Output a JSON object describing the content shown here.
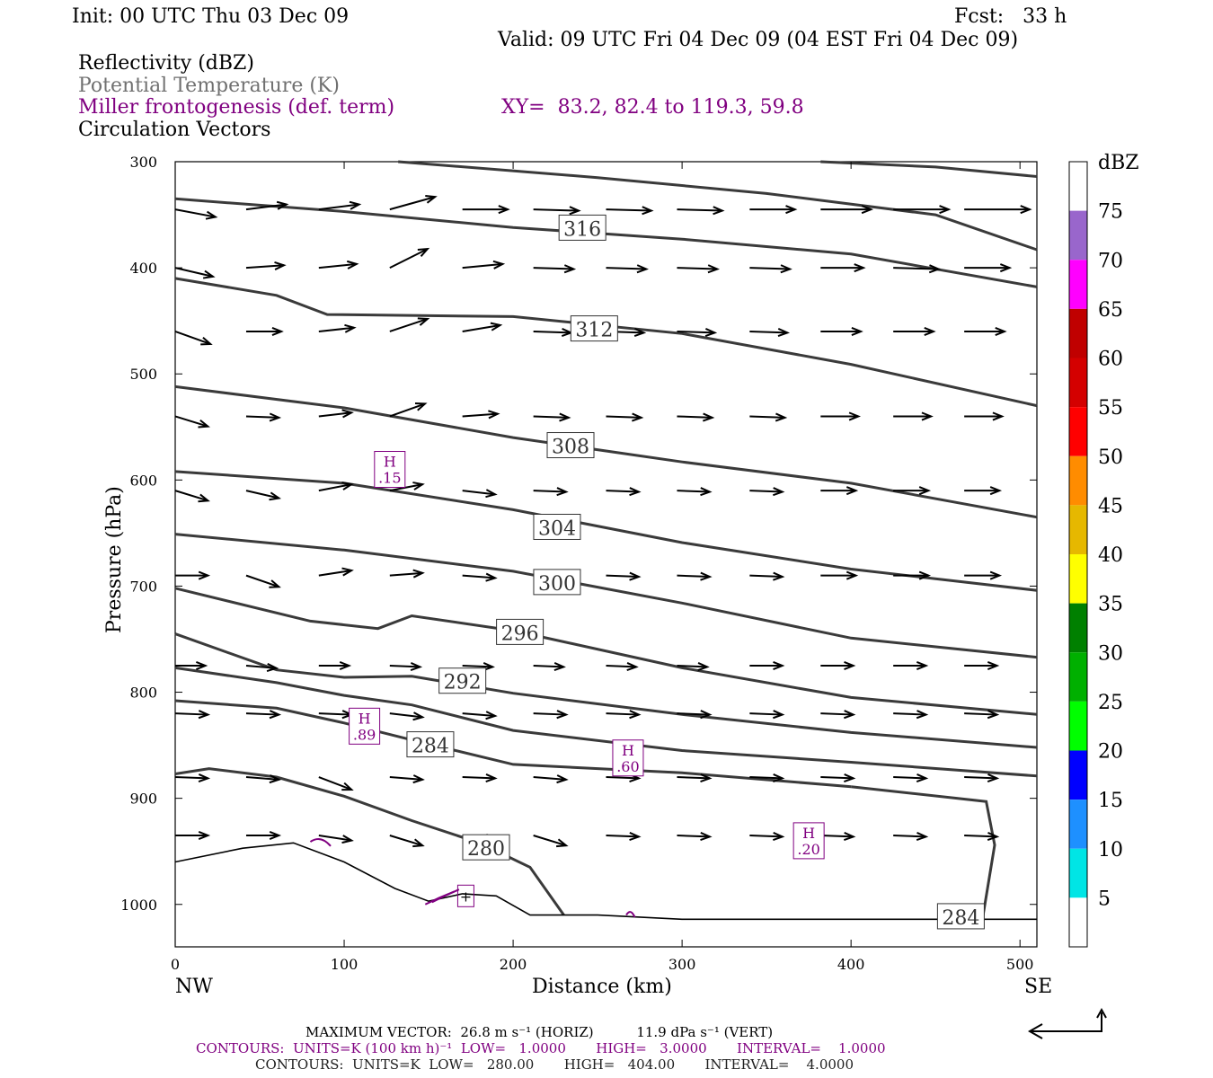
{
  "header": {
    "init": "Init: 00 UTC Thu 03 Dec 09",
    "fcst": "Fcst:   33 h",
    "valid": "Valid: 09 UTC Fri 04 Dec 09 (04 EST Fri 04 Dec 09)",
    "fields": [
      {
        "label": "Reflectivity (dBZ)",
        "color": "#000000"
      },
      {
        "label": "Potential Temperature (K)",
        "color": "#707070"
      },
      {
        "label": "Miller frontogenesis (def. term)",
        "color": "#800080"
      },
      {
        "label": "Circulation Vectors",
        "color": "#000000"
      }
    ],
    "xy": "XY=  83.2, 82.4 to 119.3, 59.8"
  },
  "chart_data": {
    "type": "cross-section",
    "xlabel": "Distance (km)",
    "ylabel": "Pressure (hPa)",
    "xlim": [
      0,
      510
    ],
    "ylim": [
      1040,
      300
    ],
    "x_ticks": [
      "0",
      "100",
      "200",
      "300",
      "400",
      "500"
    ],
    "y_ticks": [
      "300",
      "400",
      "500",
      "600",
      "700",
      "800",
      "900",
      "1000"
    ],
    "x_end_labels": {
      "left": "NW",
      "right": "SE"
    },
    "theta_contours": [
      {
        "label": "316",
        "label_at": [
          241,
          363
        ],
        "points": [
          [
            0,
            335
          ],
          [
            100,
            347
          ],
          [
            200,
            362
          ],
          [
            300,
            373
          ],
          [
            400,
            387
          ],
          [
            510,
            418
          ]
        ]
      },
      {
        "label": "",
        "points": [
          [
            132,
            300
          ],
          [
            250,
            315
          ],
          [
            350,
            330
          ],
          [
            450,
            350
          ],
          [
            510,
            383
          ]
        ]
      },
      {
        "label": "",
        "points": [
          [
            382,
            300
          ],
          [
            450,
            305
          ],
          [
            510,
            314
          ]
        ]
      },
      {
        "label": "312",
        "label_at": [
          248,
          458
        ],
        "points": [
          [
            0,
            410
          ],
          [
            60,
            426
          ],
          [
            90,
            444
          ],
          [
            200,
            446
          ],
          [
            300,
            462
          ],
          [
            400,
            491
          ],
          [
            510,
            530
          ]
        ]
      },
      {
        "label": "308",
        "label_at": [
          234,
          568
        ],
        "points": [
          [
            0,
            512
          ],
          [
            100,
            532
          ],
          [
            200,
            560
          ],
          [
            300,
            583
          ],
          [
            400,
            603
          ],
          [
            510,
            635
          ]
        ]
      },
      {
        "label": "304",
        "label_at": [
          226,
          645
        ],
        "points": [
          [
            0,
            592
          ],
          [
            100,
            603
          ],
          [
            200,
            628
          ],
          [
            300,
            659
          ],
          [
            400,
            684
          ],
          [
            510,
            704
          ]
        ]
      },
      {
        "label": "300",
        "label_at": [
          226,
          697
        ],
        "points": [
          [
            0,
            651
          ],
          [
            100,
            666
          ],
          [
            200,
            686
          ],
          [
            300,
            716
          ],
          [
            400,
            749
          ],
          [
            510,
            767
          ]
        ]
      },
      {
        "label": "296",
        "label_at": [
          204,
          744
        ],
        "points": [
          [
            0,
            702
          ],
          [
            80,
            733
          ],
          [
            120,
            740
          ],
          [
            140,
            728
          ],
          [
            200,
            742
          ],
          [
            300,
            777
          ],
          [
            400,
            805
          ],
          [
            510,
            821
          ]
        ]
      },
      {
        "label": "292",
        "label_at": [
          170,
          790
        ],
        "points": [
          [
            0,
            745
          ],
          [
            60,
            779
          ],
          [
            100,
            786
          ],
          [
            140,
            785
          ],
          [
            200,
            801
          ],
          [
            300,
            821
          ],
          [
            400,
            838
          ],
          [
            510,
            852
          ]
        ]
      },
      {
        "label": "",
        "points": [
          [
            0,
            777
          ],
          [
            60,
            791
          ],
          [
            100,
            803
          ],
          [
            140,
            812
          ],
          [
            200,
            836
          ],
          [
            300,
            855
          ],
          [
            400,
            866
          ],
          [
            510,
            879
          ]
        ]
      },
      {
        "label": "284",
        "label_at": [
          151,
          850
        ],
        "points": [
          [
            0,
            808
          ],
          [
            60,
            815
          ],
          [
            100,
            829
          ],
          [
            140,
            845
          ],
          [
            200,
            868
          ],
          [
            300,
            876
          ],
          [
            400,
            889
          ]
        ]
      },
      {
        "label": "280",
        "label_at": [
          184,
          947
        ],
        "points": [
          [
            0,
            877
          ],
          [
            20,
            872
          ],
          [
            60,
            880
          ],
          [
            100,
            898
          ],
          [
            140,
            921
          ],
          [
            180,
            942
          ],
          [
            210,
            965
          ],
          [
            230,
            1010
          ]
        ]
      }
    ],
    "closed_contour_284_right": {
      "label": "284",
      "label_at": [
        465,
        1012
      ],
      "points": [
        [
          400,
          889
        ],
        [
          480,
          903
        ],
        [
          485,
          944
        ],
        [
          478,
          1012
        ]
      ]
    },
    "terrain": [
      [
        0,
        960
      ],
      [
        40,
        947
      ],
      [
        70,
        942
      ],
      [
        100,
        960
      ],
      [
        130,
        985
      ],
      [
        150,
        997
      ],
      [
        170,
        990
      ],
      [
        190,
        992
      ],
      [
        210,
        1010
      ],
      [
        250,
        1010
      ],
      [
        300,
        1014
      ],
      [
        400,
        1014
      ],
      [
        510,
        1014
      ]
    ],
    "vectors": {
      "x": [
        0,
        42,
        85,
        127,
        170,
        212,
        255,
        297,
        340,
        382,
        425,
        467
      ],
      "rows": [
        {
          "p": 345,
          "u": [
            3.2,
            3.2,
            3.2,
            3.6,
            3.6,
            3.6,
            3.6,
            3.6,
            3.6,
            4.0,
            4.4,
            5.2
          ],
          "w": [
            0.6,
            -0.4,
            -0.4,
            -1.0,
            0,
            0.1,
            0.1,
            0.1,
            0,
            0,
            0,
            0
          ]
        },
        {
          "p": 400,
          "u": [
            3.0,
            3.0,
            3.0,
            3.0,
            3.2,
            3.2,
            3.2,
            3.2,
            3.2,
            3.4,
            3.6,
            3.6
          ],
          "w": [
            0.7,
            -0.2,
            -0.3,
            -1.5,
            -0.3,
            0.1,
            0.1,
            0.1,
            0.1,
            0,
            0.1,
            0
          ]
        },
        {
          "p": 460,
          "u": [
            2.8,
            2.8,
            2.8,
            3.0,
            3.0,
            3.0,
            3.0,
            3.0,
            3.0,
            3.2,
            3.2,
            3.2
          ],
          "w": [
            1.0,
            0,
            -0.3,
            -1.0,
            -0.5,
            0.1,
            0.1,
            0.1,
            0.1,
            0,
            0,
            0
          ]
        },
        {
          "p": 540,
          "u": [
            2.6,
            2.6,
            2.6,
            2.8,
            2.8,
            2.8,
            2.8,
            2.8,
            2.8,
            3.0,
            3.0,
            3.0
          ],
          "w": [
            0.8,
            0.1,
            -0.3,
            -1.0,
            -0.2,
            0.1,
            0.1,
            0.1,
            0.1,
            0,
            0,
            0
          ]
        },
        {
          "p": 610,
          "u": [
            2.6,
            2.6,
            2.6,
            2.6,
            2.6,
            2.6,
            2.6,
            2.6,
            2.6,
            2.8,
            2.8,
            2.8
          ],
          "w": [
            0.8,
            0.6,
            -0.5,
            -0.5,
            0.3,
            0.1,
            0.1,
            0.1,
            0.1,
            0,
            0,
            0
          ]
        },
        {
          "p": 690,
          "u": [
            2.6,
            2.6,
            2.6,
            2.6,
            2.6,
            2.6,
            2.6,
            2.6,
            2.6,
            2.8,
            2.8,
            2.8
          ],
          "w": [
            0,
            0.9,
            -0.4,
            -0.2,
            0.2,
            0.1,
            0.1,
            0.1,
            0.1,
            0,
            0,
            0
          ]
        },
        {
          "p": 775,
          "u": [
            2.4,
            2.4,
            2.4,
            2.4,
            2.4,
            2.4,
            2.4,
            2.4,
            2.6,
            2.6,
            2.6,
            2.6
          ],
          "w": [
            0,
            0.2,
            0,
            0.1,
            0.1,
            0.1,
            0.1,
            0.1,
            0,
            0,
            0,
            0
          ]
        },
        {
          "p": 820,
          "u": [
            2.6,
            2.6,
            2.6,
            2.6,
            2.6,
            2.6,
            2.6,
            2.6,
            2.6,
            2.6,
            2.6,
            2.6
          ],
          "w": [
            0.1,
            0.1,
            0.1,
            0.3,
            0.2,
            0.1,
            0.1,
            0.1,
            0.1,
            0.1,
            0.1,
            0.1
          ]
        },
        {
          "p": 880,
          "u": [
            2.6,
            2.6,
            2.6,
            2.6,
            2.6,
            2.6,
            2.6,
            2.6,
            2.6,
            2.6,
            2.6,
            2.6
          ],
          "w": [
            0.1,
            0.2,
            1.0,
            0.2,
            0.1,
            0.2,
            0.1,
            0.1,
            0.1,
            0.1,
            0.1,
            0.1
          ]
        },
        {
          "p": 935,
          "u": [
            2.6,
            2.6,
            2.6,
            2.6,
            2.6,
            2.6,
            2.6,
            2.6,
            2.6,
            2.6,
            2.6,
            2.6
          ],
          "w": [
            0,
            0,
            0.4,
            0.8,
            0.3,
            0.8,
            0.1,
            0.1,
            0.1,
            0.1,
            0.1,
            0.1
          ]
        }
      ]
    },
    "frontogenesis_maxima": [
      {
        "letter": "H",
        "value": ".15",
        "at": [
          127,
          590
        ]
      },
      {
        "letter": "H",
        "value": ".89",
        "at": [
          112,
          832
        ]
      },
      {
        "letter": "H",
        "value": ".60",
        "at": [
          268,
          862
        ]
      },
      {
        "letter": "H",
        "value": ".20",
        "at": [
          375,
          940
        ]
      },
      {
        "letter": "+",
        "value": "",
        "at": [
          172,
          992
        ]
      }
    ],
    "colorbar": {
      "title": "dBZ",
      "levels": [
        "75",
        "70",
        "65",
        "60",
        "55",
        "50",
        "45",
        "40",
        "35",
        "30",
        "25",
        "20",
        "15",
        "10",
        "5"
      ],
      "colors": [
        "#ffffff",
        "#9966cc",
        "#ff00ff",
        "#c00000",
        "#d40000",
        "#ff0000",
        "#ff8c00",
        "#e6b800",
        "#ffff00",
        "#008000",
        "#00b000",
        "#00ff00",
        "#0000ff",
        "#1e90ff",
        "#00e5e5",
        "#ffffff"
      ]
    }
  },
  "footer": {
    "max_vector": "MAXIMUM VECTOR:  26.8 m s⁻¹ (HORIZ)          11.9 dPa s⁻¹ (VERT)",
    "contours_purple": "CONTOURS:  UNITS=K (100 km h)⁻¹  LOW=   1.0000       HIGH=   3.0000       INTERVAL=    1.0000",
    "contours_gray": "CONTOURS:  UNITS=K  LOW=   280.00       HIGH=   404.00       INTERVAL=    4.0000"
  }
}
